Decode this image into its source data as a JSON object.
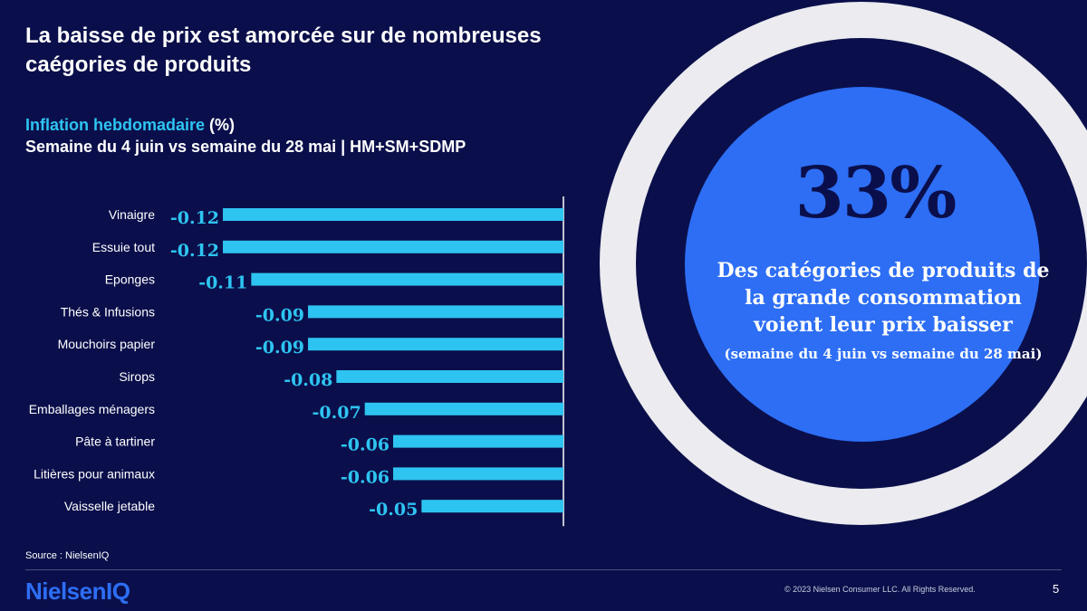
{
  "header": {
    "title": "La baisse de prix est amorcée sur de nombreuses caégories de produits",
    "subtitle_accent": "Inflation hebdomadaire",
    "subtitle_unit": " (%)",
    "subtitle_period": "Semaine du 4 juin vs semaine du 28 mai | HM+SM+SDMP"
  },
  "chart_data": {
    "type": "bar",
    "orientation": "horizontal",
    "categories": [
      "Vinaigre",
      "Essuie tout",
      "Eponges",
      "Thés & Infusions",
      "Mouchoirs papier",
      "Sirops",
      "Emballages ménagers",
      "Pâte à tartiner",
      "Litières pour animaux",
      "Vaisselle jetable"
    ],
    "values": [
      -0.12,
      -0.12,
      -0.11,
      -0.09,
      -0.09,
      -0.08,
      -0.07,
      -0.06,
      -0.06,
      -0.05
    ],
    "value_labels": [
      "-0.12",
      "-0.12",
      "-0.11",
      "-0.09",
      "-0.09",
      "-0.08",
      "-0.07",
      "-0.06",
      "-0.06",
      "-0.05"
    ],
    "bar_color": "#2ec4f1",
    "axis_color": "#ffffff"
  },
  "stat": {
    "value": "33%",
    "line1": "Des catégories de produits de",
    "line2": "la grande consommation",
    "line3": "voient leur prix baisser",
    "note": "(semaine du 4 juin vs semaine du 28 mai)"
  },
  "footer": {
    "source": "Source : NielsenIQ",
    "logo": "NielsenIQ",
    "copyright": "© 2023 Nielsen Consumer LLC. All Rights Reserved.",
    "page": "5"
  },
  "colors": {
    "background": "#0a0f4b",
    "accent": "#2ec4f1",
    "circle": "#2d6ef5",
    "ring": "#ebebf0"
  }
}
